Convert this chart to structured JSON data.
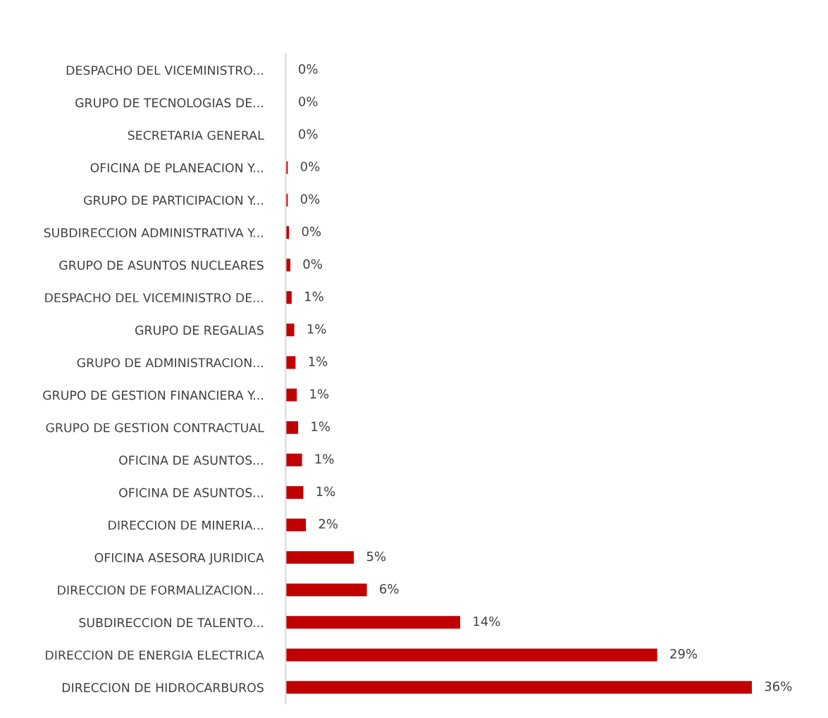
{
  "chart_data": {
    "type": "bar",
    "orientation": "horizontal",
    "categories": [
      "DESPACHO DEL VICEMINISTRO...",
      "GRUPO DE TECNOLOGIAS DE...",
      "SECRETARIA GENERAL",
      "OFICINA DE PLANEACION Y...",
      "GRUPO DE PARTICIPACION Y...",
      "SUBDIRECCION ADMINISTRATIVA Y...",
      "GRUPO DE ASUNTOS NUCLEARES",
      "DESPACHO DEL VICEMINISTRO DE...",
      "GRUPO DE REGALIAS",
      "GRUPO DE ADMINISTRACION...",
      "GRUPO DE GESTION FINANCIERA Y...",
      "GRUPO DE GESTION CONTRACTUAL",
      "OFICINA DE ASUNTOS...",
      "OFICINA DE ASUNTOS...",
      "DIRECCION DE MINERIA...",
      "OFICINA ASESORA JURIDICA",
      "DIRECCION DE FORMALIZACION...",
      "SUBDIRECCION DE TALENTO...",
      "DIRECCION DE ENERGIA ELECTRICA",
      "DIRECCION DE HIDROCARBUROS"
    ],
    "series": [
      {
        "color": "#c00000",
        "values": [
          0.05,
          0.05,
          0.05,
          0.2,
          0.2,
          0.3,
          0.4,
          0.5,
          0.7,
          0.8,
          0.9,
          1.0,
          1.3,
          1.4,
          1.6,
          5.3,
          6.3,
          13.5,
          28.7,
          36
        ],
        "value_labels": [
          "0%",
          "0%",
          "0%",
          "0%",
          "0%",
          "0%",
          "0%",
          "1%",
          "1%",
          "1%",
          "1%",
          "1%",
          "1%",
          "1%",
          "2%",
          "5%",
          "6%",
          "14%",
          "29%",
          "36%"
        ]
      }
    ],
    "grid": false,
    "legend": false
  }
}
